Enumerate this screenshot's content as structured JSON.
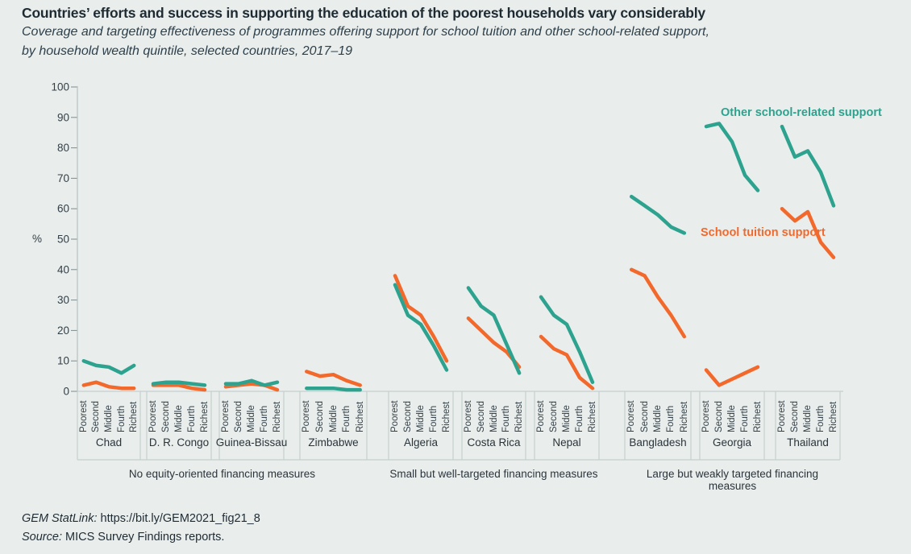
{
  "header": {
    "title": "Countries’ efforts and success in supporting the education of the poorest households vary considerably",
    "subtitle_line1": "Coverage and targeting effectiveness of programmes offering support for school tuition and other school-related support,",
    "subtitle_line2": "by household wealth quintile, selected countries, 2017–19"
  },
  "chart_data": {
    "type": "line",
    "y_axis": {
      "unit_label": "%",
      "min": 0,
      "max": 100,
      "ticks": [
        0,
        10,
        20,
        30,
        40,
        50,
        60,
        70,
        80,
        90,
        100
      ]
    },
    "quintiles": [
      "Poorest",
      "Second",
      "Middle",
      "Fourth",
      "Richest"
    ],
    "legend": [
      {
        "label": "Other school-related support",
        "series_key": "other_school_related_support",
        "color": "#2da38f"
      },
      {
        "label": "School tuition support",
        "series_key": "school_tuition_support",
        "color": "#f3692c"
      }
    ],
    "groups": [
      {
        "label": "No equity-oriented financing measures",
        "countries": [
          {
            "name": "Chad",
            "other_school_related_support": [
              10,
              8.5,
              8,
              6,
              8.5
            ],
            "school_tuition_support": [
              2,
              3,
              1.5,
              1,
              1
            ]
          },
          {
            "name": "D. R. Congo",
            "other_school_related_support": [
              2.5,
              3,
              3,
              2.5,
              2
            ],
            "school_tuition_support": [
              2,
              2,
              2,
              1,
              0.5
            ]
          },
          {
            "name": "Guinea-Bissau",
            "other_school_related_support": [
              2.5,
              2.5,
              3.5,
              2,
              3
            ],
            "school_tuition_support": [
              1.5,
              2,
              2.5,
              2,
              0.5
            ]
          },
          {
            "name": "Zimbabwe",
            "other_school_related_support": [
              1,
              1,
              1,
              0.5,
              0.5
            ],
            "school_tuition_support": [
              6.5,
              5,
              5.5,
              3.5,
              2
            ]
          }
        ]
      },
      {
        "label": "Small but well-targeted financing measures",
        "countries": [
          {
            "name": "Algeria",
            "other_school_related_support": [
              35,
              25,
              22,
              15,
              7
            ],
            "school_tuition_support": [
              38,
              28,
              25,
              18,
              10
            ]
          },
          {
            "name": "Costa Rica",
            "other_school_related_support": [
              34,
              28,
              25,
              15.5,
              6
            ],
            "school_tuition_support": [
              24,
              20,
              16,
              13,
              8
            ]
          },
          {
            "name": "Nepal",
            "other_school_related_support": [
              31,
              25,
              22,
              13,
              3
            ],
            "school_tuition_support": [
              18,
              14,
              12,
              4.5,
              1
            ]
          }
        ]
      },
      {
        "label": "Large but weakly targeted financing measures",
        "countries": [
          {
            "name": "Bangladesh",
            "other_school_related_support": [
              64,
              61,
              58,
              54,
              52
            ],
            "school_tuition_support": [
              40,
              38,
              31,
              25,
              18
            ]
          },
          {
            "name": "Georgia",
            "other_school_related_support": [
              87,
              88,
              82,
              71,
              66
            ],
            "school_tuition_support": [
              7,
              2,
              4,
              6,
              8
            ]
          },
          {
            "name": "Thailand",
            "other_school_related_support": [
              87,
              77,
              79,
              72,
              61
            ],
            "school_tuition_support": [
              60,
              56,
              59,
              49,
              44
            ]
          }
        ]
      }
    ]
  },
  "footer": {
    "statlink_label": "GEM StatLink:",
    "statlink_value": "https://bit.ly/GEM2021_fig21_8",
    "source_label": "Source:",
    "source_value": "MICS Survey Findings reports."
  },
  "colors": {
    "background": "#e9eeec",
    "axis_line": "#b5bfc1",
    "cell_border": "#c6cfcf",
    "tick": "#7d898d",
    "text_dark": "#1f2b33"
  }
}
